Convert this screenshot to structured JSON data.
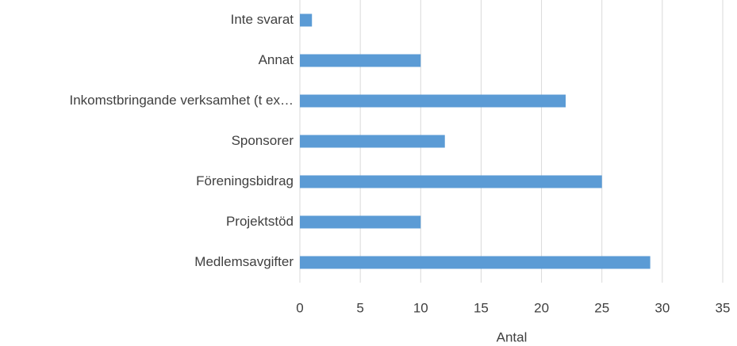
{
  "chart_data": {
    "type": "barh",
    "categories": [
      "Inte svarat",
      "Annat",
      "Inkomstbringande verksamhet (t ex…",
      "Sponsorer",
      "Föreningsbidrag",
      "Projektstöd",
      "Medlemsavgifter"
    ],
    "values": [
      1,
      10,
      22,
      12,
      25,
      10,
      29
    ],
    "color": "#5b9bd5",
    "xlabel": "Antal",
    "xlim": [
      0,
      35
    ],
    "xticks": [
      0,
      5,
      10,
      15,
      20,
      25,
      30,
      35
    ],
    "grid": true
  }
}
